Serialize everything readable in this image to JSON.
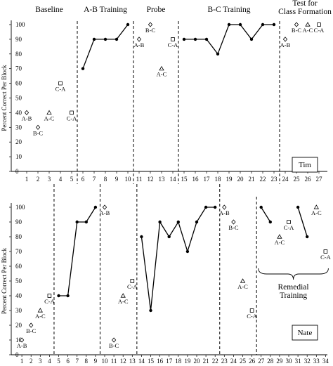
{
  "chart_data": [
    {
      "type": "line",
      "participant": "Tim",
      "ylabel": "Percent Correct Per Block",
      "ylim": [
        0,
        100
      ],
      "yticks": [
        0,
        10,
        20,
        30,
        40,
        50,
        60,
        70,
        80,
        90,
        100
      ],
      "x_ticks": [
        1,
        2,
        3,
        4,
        5,
        6,
        7,
        8,
        9,
        10,
        11,
        12,
        13,
        14,
        15,
        16,
        17,
        18,
        19,
        20,
        21,
        22,
        23,
        24,
        25,
        26,
        27
      ],
      "phases": [
        {
          "name": "Baseline",
          "start": 1,
          "end": 5
        },
        {
          "name": "A-B Training",
          "start": 6,
          "end": 10
        },
        {
          "name": "Probe",
          "start": 11,
          "end": 14
        },
        {
          "name": "B-C Training",
          "start": 15,
          "end": 23
        },
        {
          "name": "Test for Class Formation",
          "start": 24,
          "end": 27
        }
      ],
      "phase_change_after": [
        5.5,
        10.5,
        14.5,
        23.5
      ],
      "line_segments": [
        {
          "x": [
            6,
            7,
            8,
            9,
            10
          ],
          "y": [
            70,
            90,
            90,
            90,
            100
          ]
        },
        {
          "x": [
            15,
            16,
            17,
            18,
            19,
            20,
            21,
            22,
            23
          ],
          "y": [
            90,
            90,
            90,
            80,
            100,
            100,
            90,
            100,
            100
          ]
        }
      ],
      "probe_points": [
        {
          "x": 1,
          "y": 40,
          "label": "A-B",
          "marker": "diamond"
        },
        {
          "x": 2,
          "y": 30,
          "label": "B-C",
          "marker": "diamond"
        },
        {
          "x": 3,
          "y": 40,
          "label": "A-C",
          "marker": "triangle"
        },
        {
          "x": 4,
          "y": 60,
          "label": "C-A",
          "marker": "square"
        },
        {
          "x": 5,
          "y": 40,
          "label": "C-A",
          "marker": "square"
        },
        {
          "x": 11,
          "y": 90,
          "label": "A-B",
          "marker": "diamond"
        },
        {
          "x": 12,
          "y": 100,
          "label": "B-C",
          "marker": "diamond"
        },
        {
          "x": 13,
          "y": 70,
          "label": "A-C",
          "marker": "triangle"
        },
        {
          "x": 14,
          "y": 90,
          "label": "C-A",
          "marker": "square"
        },
        {
          "x": 24,
          "y": 90,
          "label": "A-B",
          "marker": "diamond"
        },
        {
          "x": 25,
          "y": 100,
          "label": "B-C",
          "marker": "diamond"
        },
        {
          "x": 26,
          "y": 100,
          "label": "A-C",
          "marker": "triangle"
        },
        {
          "x": 27,
          "y": 100,
          "label": "C-A",
          "marker": "square"
        }
      ],
      "annotations": []
    },
    {
      "type": "line",
      "participant": "Nate",
      "ylabel": "Percent Correct Per Block",
      "ylim": [
        0,
        100
      ],
      "yticks": [
        0,
        10,
        20,
        30,
        40,
        50,
        60,
        70,
        80,
        90,
        100
      ],
      "x_ticks": [
        1,
        2,
        3,
        4,
        5,
        6,
        7,
        8,
        9,
        10,
        11,
        12,
        13,
        14,
        15,
        16,
        17,
        18,
        19,
        20,
        21,
        22,
        23,
        24,
        25,
        26,
        27,
        28,
        29,
        30,
        31,
        32,
        33,
        34
      ],
      "phase_change_after": [
        4.5,
        9.5,
        13.5,
        22.5,
        26.5
      ],
      "line_segments": [
        {
          "x": [
            5,
            6,
            7,
            8,
            9
          ],
          "y": [
            40,
            40,
            90,
            90,
            100
          ]
        },
        {
          "x": [
            14,
            15,
            16,
            17,
            18,
            19,
            20,
            21,
            22
          ],
          "y": [
            80,
            30,
            90,
            80,
            90,
            70,
            90,
            100,
            100
          ]
        },
        {
          "x": [
            27,
            28
          ],
          "y": [
            100,
            90
          ]
        },
        {
          "x": [
            31,
            32
          ],
          "y": [
            100,
            80
          ]
        }
      ],
      "probe_points": [
        {
          "x": 1,
          "y": 10,
          "label": "A-B",
          "marker": "diamond"
        },
        {
          "x": 2,
          "y": 20,
          "label": "B-C",
          "marker": "diamond"
        },
        {
          "x": 3,
          "y": 30,
          "label": "A-C",
          "marker": "triangle"
        },
        {
          "x": 4,
          "y": 40,
          "label": "C-A",
          "marker": "square"
        },
        {
          "x": 10,
          "y": 100,
          "label": "A-B",
          "marker": "diamond"
        },
        {
          "x": 11,
          "y": 10,
          "label": "B-C",
          "marker": "diamond"
        },
        {
          "x": 12,
          "y": 40,
          "label": "A-C",
          "marker": "triangle"
        },
        {
          "x": 13,
          "y": 50,
          "label": "C-A",
          "marker": "square"
        },
        {
          "x": 23,
          "y": 100,
          "label": "A-B",
          "marker": "diamond"
        },
        {
          "x": 24,
          "y": 90,
          "label": "B-C",
          "marker": "diamond"
        },
        {
          "x": 25,
          "y": 50,
          "label": "A-C",
          "marker": "triangle"
        },
        {
          "x": 26,
          "y": 30,
          "label": "C-A",
          "marker": "square"
        },
        {
          "x": 29,
          "y": 80,
          "label": "A-C",
          "marker": "triangle"
        },
        {
          "x": 30,
          "y": 90,
          "label": "C-A",
          "marker": "square"
        },
        {
          "x": 33,
          "y": 100,
          "label": "A-C",
          "marker": "triangle"
        },
        {
          "x": 34,
          "y": 70,
          "label": "C-A",
          "marker": "square"
        }
      ],
      "annotations": [
        {
          "text": "Remedial",
          "x_center": 30.5
        },
        {
          "text": "Training",
          "x_center": 30.5
        }
      ]
    }
  ]
}
